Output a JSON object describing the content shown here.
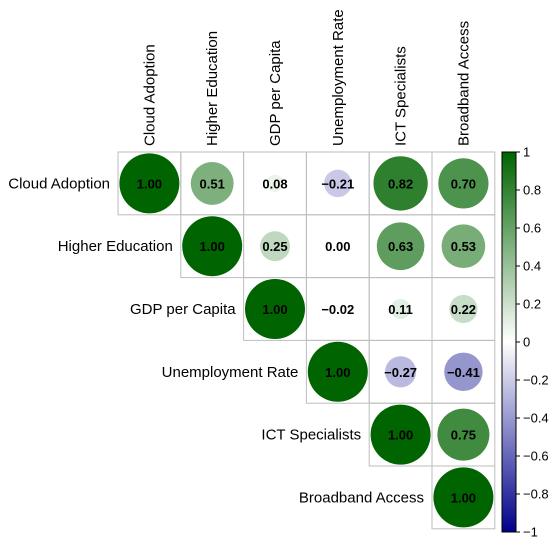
{
  "chart_data": {
    "type": "heatmap",
    "style": "circle-correlation-upper-triangle",
    "variables": [
      "Cloud Adoption",
      "Higher Education",
      "GDP per Capita",
      "Unemployment Rate",
      "ICT Specialists",
      "Broadband Access"
    ],
    "matrix": [
      [
        1.0,
        0.51,
        0.08,
        -0.21,
        0.82,
        0.7
      ],
      [
        null,
        1.0,
        0.25,
        0.0,
        0.63,
        0.53
      ],
      [
        null,
        null,
        1.0,
        -0.02,
        0.11,
        0.22
      ],
      [
        null,
        null,
        null,
        1.0,
        -0.27,
        -0.41
      ],
      [
        null,
        null,
        null,
        null,
        1.0,
        0.75
      ],
      [
        null,
        null,
        null,
        null,
        null,
        1.0
      ]
    ],
    "labels": [
      [
        "1.00",
        "0.51",
        "0.08",
        "−0.21",
        "0.82",
        "0.70"
      ],
      [
        null,
        "1.00",
        "0.25",
        "0.00",
        "0.63",
        "0.53"
      ],
      [
        null,
        null,
        "1.00",
        "−0.02",
        "0.11",
        "0.22"
      ],
      [
        null,
        null,
        null,
        "1.00",
        "−0.27",
        "−0.41"
      ],
      [
        null,
        null,
        null,
        null,
        "1.00",
        "0.75"
      ],
      [
        null,
        null,
        null,
        null,
        null,
        "1.00"
      ]
    ],
    "colorbar": {
      "range": [
        -1,
        1
      ],
      "ticks": [
        1,
        0.8,
        0.6,
        0.4,
        0.2,
        0,
        -0.2,
        -0.4,
        -0.6,
        -0.8,
        -1
      ],
      "tick_labels": [
        "1",
        "0.8",
        "0.6",
        "0.4",
        "0.2",
        "0",
        "−0.2",
        "−0.4",
        "−0.6",
        "−0.8",
        "−1"
      ],
      "low_color": "#00008B",
      "mid_color": "#FFFFFF",
      "high_color": "#006400"
    }
  }
}
